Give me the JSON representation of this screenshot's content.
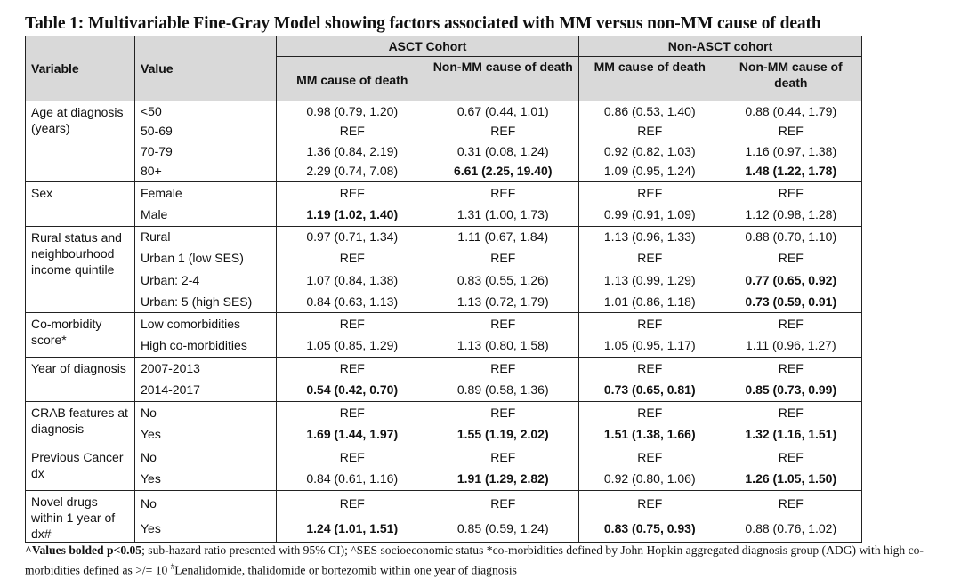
{
  "title": "Table 1: Multivariable Fine-Gray Model showing factors associated with MM versus non-MM cause of death",
  "header": {
    "variable": "Variable",
    "value": "Value",
    "cohorts": [
      "ASCT Cohort",
      "Non-ASCT cohort"
    ],
    "subcolumns": [
      "MM cause of death",
      "Non-MM cause of death",
      "MM cause of death",
      "Non-MM cause of death"
    ]
  },
  "groups": [
    {
      "variable": "Age at diagnosis (years)",
      "rows": [
        {
          "value": "<50",
          "cells": [
            {
              "text": "0.98 (0.79, 1.20)"
            },
            {
              "text": "0.67 (0.44, 1.01)"
            },
            {
              "text": "0.86 (0.53, 1.40)"
            },
            {
              "text": "0.88 (0.44, 1.79)"
            }
          ]
        },
        {
          "value": "50-69",
          "cells": [
            {
              "text": "REF"
            },
            {
              "text": "REF"
            },
            {
              "text": "REF"
            },
            {
              "text": "REF"
            }
          ]
        },
        {
          "value": "70-79",
          "cells": [
            {
              "text": "1.36 (0.84, 2.19)"
            },
            {
              "text": "0.31 (0.08, 1.24)"
            },
            {
              "text": "0.92 (0.82, 1.03)"
            },
            {
              "text": "1.16 (0.97, 1.38)"
            }
          ]
        },
        {
          "value": "80+",
          "cells": [
            {
              "text": "2.29 (0.74, 7.08)"
            },
            {
              "text": "6.61 (2.25, 19.40)",
              "bold": true
            },
            {
              "text": "1.09 (0.95, 1.24)"
            },
            {
              "text": "1.48 (1.22, 1.78)",
              "bold": true
            }
          ]
        }
      ]
    },
    {
      "variable": "Sex",
      "rows": [
        {
          "value": "Female",
          "cells": [
            {
              "text": "REF"
            },
            {
              "text": "REF"
            },
            {
              "text": "REF"
            },
            {
              "text": "REF"
            }
          ]
        },
        {
          "value": "Male",
          "cells": [
            {
              "text": "1.19 (1.02, 1.40)",
              "bold": true
            },
            {
              "text": "1.31 (1.00, 1.73)"
            },
            {
              "text": "0.99 (0.91, 1.09)"
            },
            {
              "text": "1.12 (0.98, 1.28)"
            }
          ]
        }
      ]
    },
    {
      "variable": "Rural status and neighbourhood income quintile",
      "rows": [
        {
          "value": "Rural",
          "cells": [
            {
              "text": "0.97 (0.71, 1.34)"
            },
            {
              "text": "1.11 (0.67, 1.84)"
            },
            {
              "text": "1.13 (0.96, 1.33)"
            },
            {
              "text": "0.88 (0.70, 1.10)"
            }
          ]
        },
        {
          "value": "Urban 1 (low SES)",
          "cells": [
            {
              "text": "REF"
            },
            {
              "text": "REF"
            },
            {
              "text": "REF"
            },
            {
              "text": "REF"
            }
          ]
        },
        {
          "value": "Urban: 2-4",
          "cells": [
            {
              "text": "1.07 (0.84, 1.38)"
            },
            {
              "text": "0.83 (0.55, 1.26)"
            },
            {
              "text": "1.13 (0.99, 1.29)"
            },
            {
              "text": "0.77 (0.65, 0.92)",
              "bold": true
            }
          ]
        },
        {
          "value": "Urban: 5 (high SES)",
          "cells": [
            {
              "text": "0.84 (0.63, 1.13)"
            },
            {
              "text": "1.13 (0.72, 1.79)"
            },
            {
              "text": "1.01 (0.86, 1.18)"
            },
            {
              "text": "0.73 (0.59, 0.91)",
              "bold": true
            }
          ]
        }
      ]
    },
    {
      "variable": "Co-morbidity score*",
      "rows": [
        {
          "value": "Low comorbidities",
          "cells": [
            {
              "text": "REF"
            },
            {
              "text": "REF"
            },
            {
              "text": "REF"
            },
            {
              "text": "REF"
            }
          ]
        },
        {
          "value": "High co-morbidities",
          "cells": [
            {
              "text": "1.05 (0.85, 1.29)"
            },
            {
              "text": "1.13 (0.80, 1.58)"
            },
            {
              "text": "1.05 (0.95, 1.17)"
            },
            {
              "text": "1.11 (0.96, 1.27)"
            }
          ]
        }
      ]
    },
    {
      "variable": "Year of diagnosis",
      "rows": [
        {
          "value": "2007-2013",
          "cells": [
            {
              "text": "REF"
            },
            {
              "text": "REF"
            },
            {
              "text": "REF"
            },
            {
              "text": "REF"
            }
          ]
        },
        {
          "value": "2014-2017",
          "cells": [
            {
              "text": "0.54 (0.42, 0.70)",
              "bold": true
            },
            {
              "text": "0.89 (0.58, 1.36)"
            },
            {
              "text": "0.73 (0.65, 0.81)",
              "bold": true
            },
            {
              "text": "0.85 (0.73, 0.99)",
              "bold": true
            }
          ]
        }
      ]
    },
    {
      "variable": "CRAB features at diagnosis",
      "rows": [
        {
          "value": "No",
          "cells": [
            {
              "text": "REF"
            },
            {
              "text": "REF"
            },
            {
              "text": "REF"
            },
            {
              "text": "REF"
            }
          ]
        },
        {
          "value": "Yes",
          "cells": [
            {
              "text": "1.69 (1.44, 1.97)",
              "bold": true
            },
            {
              "text": "1.55 (1.19, 2.02)",
              "bold": true
            },
            {
              "text": "1.51 (1.38, 1.66)",
              "bold": true
            },
            {
              "text": "1.32 (1.16, 1.51)",
              "bold": true
            }
          ]
        }
      ]
    },
    {
      "variable": "Previous Cancer dx",
      "rows": [
        {
          "value": "No",
          "cells": [
            {
              "text": "REF"
            },
            {
              "text": "REF"
            },
            {
              "text": "REF"
            },
            {
              "text": "REF"
            }
          ]
        },
        {
          "value": "Yes",
          "cells": [
            {
              "text": "0.84 (0.61, 1.16)"
            },
            {
              "text": "1.91 (1.29, 2.82)",
              "bold": true
            },
            {
              "text": "0.92 (0.80, 1.06)"
            },
            {
              "text": "1.26 (1.05, 1.50)",
              "bold": true
            }
          ]
        }
      ]
    },
    {
      "variable": "Novel drugs within 1 year of dx#",
      "rows": [
        {
          "value": "No",
          "cells": [
            {
              "text": "REF"
            },
            {
              "text": "REF"
            },
            {
              "text": "REF"
            },
            {
              "text": "REF"
            }
          ]
        },
        {
          "value": "Yes",
          "cells": [
            {
              "text": "1.24 (1.01, 1.51)",
              "bold": true
            },
            {
              "text": "0.85 (0.59, 1.24)"
            },
            {
              "text": "0.83 (0.75, 0.93)",
              "bold": true
            },
            {
              "text": "0.88 (0.76, 1.02)"
            }
          ]
        }
      ]
    }
  ],
  "footnote": {
    "bold_part": "^Values bolded p<0.05",
    "line1_rest": "; sub-hazard ratio presented with 95% CI); ^SES socioeconomic status *co-morbidities defined by John Hopkin aggregated diagnosis group (ADG) with high co-morbidities defined as >/= 10 ",
    "sup": "#",
    "line2": "Lenalidomide, thalidomide or bortezomib within one year of diagnosis"
  }
}
